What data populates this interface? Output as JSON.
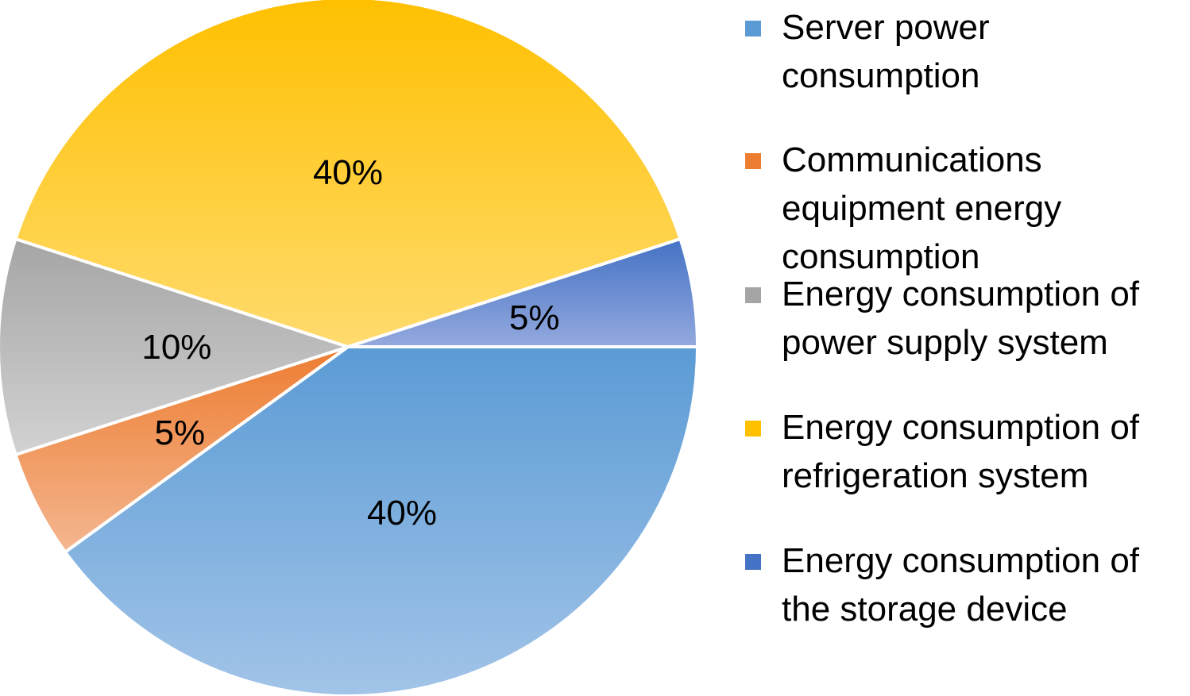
{
  "chart_data": {
    "type": "pie",
    "title": "",
    "slices": [
      {
        "name": "Server power consumption",
        "value": 40,
        "label": "40%",
        "color_top": "#5b9bd5",
        "color_bottom": "#a2c4e8",
        "legend_color": "#5b9bd5"
      },
      {
        "name": "Communications equipment energy consumption",
        "value": 5,
        "label": "5%",
        "color_top": "#ed7d31",
        "color_bottom": "#f4b690",
        "legend_color": "#ed7d31"
      },
      {
        "name": "Energy consumption of power supply system",
        "value": 10,
        "label": "10%",
        "color_top": "#a5a5a5",
        "color_bottom": "#d2d2d2",
        "legend_color": "#a5a5a5"
      },
      {
        "name": "Energy consumption of refrigeration system",
        "value": 40,
        "label": "40%",
        "color_top": "#ffc000",
        "color_bottom": "#ffdb6e",
        "legend_color": "#ffc000"
      },
      {
        "name": "Energy consumption of the storage device",
        "value": 5,
        "label": "5%",
        "color_top": "#4472c4",
        "color_bottom": "#94a9de",
        "legend_color": "#4472c4"
      }
    ],
    "legend": {
      "position": "right",
      "items": [
        {
          "lines": [
            "Server power",
            "consumption"
          ]
        },
        {
          "lines": [
            "Communications",
            "equipment energy",
            "consumption"
          ]
        },
        {
          "lines": [
            "Energy consumption of",
            "power supply system"
          ]
        },
        {
          "lines": [
            "Energy consumption of",
            "refrigeration system"
          ]
        },
        {
          "lines": [
            "Energy consumption of",
            "the storage device"
          ]
        }
      ]
    }
  }
}
